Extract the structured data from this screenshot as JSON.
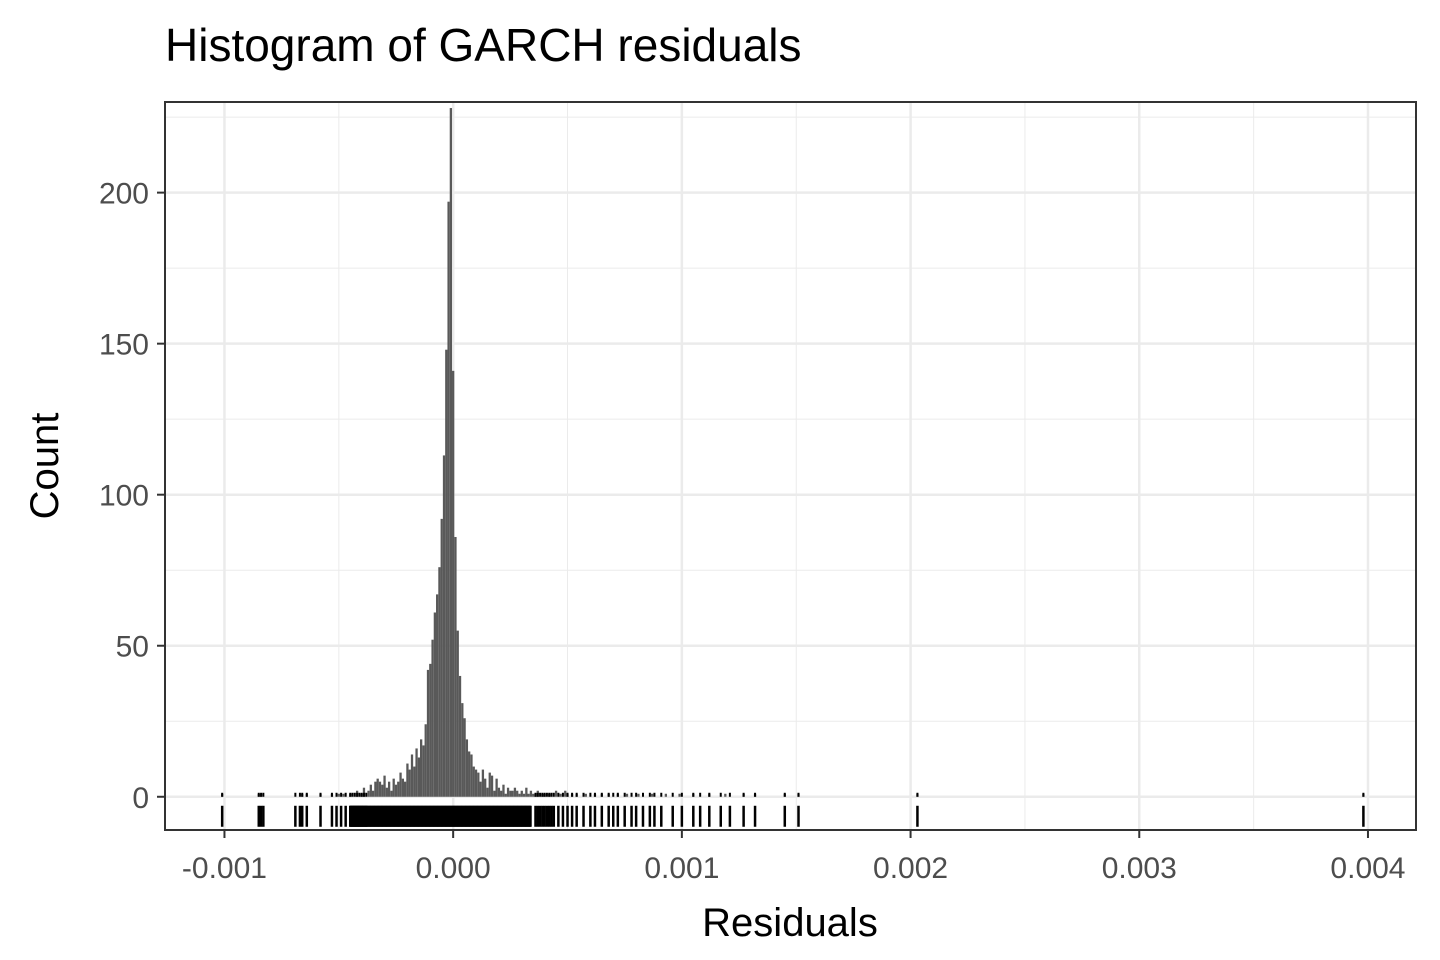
{
  "chart_data": {
    "type": "bar",
    "title": "Histogram of GARCH residuals",
    "xlabel": "Residuals",
    "ylabel": "Count",
    "xlim": [
      -0.00126,
      0.00421
    ],
    "ylim": [
      -11,
      230
    ],
    "grid": true,
    "x_ticks": [
      {
        "value": -0.001,
        "label": "-0.001"
      },
      {
        "value": 0.0,
        "label": "0.000"
      },
      {
        "value": 0.001,
        "label": "0.001"
      },
      {
        "value": 0.002,
        "label": "0.002"
      },
      {
        "value": 0.003,
        "label": "0.003"
      },
      {
        "value": 0.004,
        "label": "0.004"
      }
    ],
    "y_ticks": [
      {
        "value": 0,
        "label": "0"
      },
      {
        "value": 50,
        "label": "50"
      },
      {
        "value": 100,
        "label": "100"
      },
      {
        "value": 150,
        "label": "150"
      },
      {
        "value": 200,
        "label": "200"
      }
    ],
    "bin_width": 1e-05,
    "bins": [
      {
        "x": -0.00085,
        "count": 1
      },
      {
        "x": -0.00084,
        "count": 1
      },
      {
        "x": -0.00066,
        "count": 1
      },
      {
        "x": -0.00064,
        "count": 1
      },
      {
        "x": -0.00058,
        "count": 1
      },
      {
        "x": -0.00053,
        "count": 1
      },
      {
        "x": -0.0005,
        "count": 1
      },
      {
        "x": -0.00048,
        "count": 1
      },
      {
        "x": -0.00045,
        "count": 1
      },
      {
        "x": -0.00042,
        "count": 2
      },
      {
        "x": -0.0004,
        "count": 1
      },
      {
        "x": -0.00039,
        "count": 3
      },
      {
        "x": -0.00037,
        "count": 2
      },
      {
        "x": -0.00036,
        "count": 4
      },
      {
        "x": -0.00035,
        "count": 2
      },
      {
        "x": -0.00034,
        "count": 5
      },
      {
        "x": -0.00033,
        "count": 6
      },
      {
        "x": -0.00032,
        "count": 5
      },
      {
        "x": -0.00031,
        "count": 4
      },
      {
        "x": -0.0003,
        "count": 7
      },
      {
        "x": -0.00029,
        "count": 3
      },
      {
        "x": -0.00028,
        "count": 5
      },
      {
        "x": -0.00027,
        "count": 2
      },
      {
        "x": -0.00026,
        "count": 6
      },
      {
        "x": -0.00025,
        "count": 4
      },
      {
        "x": -0.00024,
        "count": 5
      },
      {
        "x": -0.00023,
        "count": 8
      },
      {
        "x": -0.00022,
        "count": 6
      },
      {
        "x": -0.00021,
        "count": 5
      },
      {
        "x": -0.0002,
        "count": 11
      },
      {
        "x": -0.00019,
        "count": 9
      },
      {
        "x": -0.00018,
        "count": 14
      },
      {
        "x": -0.00017,
        "count": 10
      },
      {
        "x": -0.00016,
        "count": 16
      },
      {
        "x": -0.00015,
        "count": 13
      },
      {
        "x": -0.00014,
        "count": 19
      },
      {
        "x": -0.00013,
        "count": 17
      },
      {
        "x": -0.00012,
        "count": 24
      },
      {
        "x": -0.00011,
        "count": 42
      },
      {
        "x": -0.0001,
        "count": 44
      },
      {
        "x": -9e-05,
        "count": 52
      },
      {
        "x": -8e-05,
        "count": 61
      },
      {
        "x": -7e-05,
        "count": 67
      },
      {
        "x": -6e-05,
        "count": 76
      },
      {
        "x": -5e-05,
        "count": 92
      },
      {
        "x": -4e-05,
        "count": 113
      },
      {
        "x": -3e-05,
        "count": 148
      },
      {
        "x": -2e-05,
        "count": 197
      },
      {
        "x": -1e-05,
        "count": 228
      },
      {
        "x": 0.0,
        "count": 141
      },
      {
        "x": 1e-05,
        "count": 86
      },
      {
        "x": 2e-05,
        "count": 55
      },
      {
        "x": 3e-05,
        "count": 40
      },
      {
        "x": 4e-05,
        "count": 31
      },
      {
        "x": 5e-05,
        "count": 26
      },
      {
        "x": 6e-05,
        "count": 19
      },
      {
        "x": 7e-05,
        "count": 15
      },
      {
        "x": 8e-05,
        "count": 14
      },
      {
        "x": 9e-05,
        "count": 10
      },
      {
        "x": 0.0001,
        "count": 9
      },
      {
        "x": 0.00011,
        "count": 8
      },
      {
        "x": 0.00012,
        "count": 5
      },
      {
        "x": 0.00013,
        "count": 9
      },
      {
        "x": 0.00014,
        "count": 6
      },
      {
        "x": 0.00015,
        "count": 3
      },
      {
        "x": 0.00016,
        "count": 8
      },
      {
        "x": 0.00017,
        "count": 7
      },
      {
        "x": 0.00018,
        "count": 2
      },
      {
        "x": 0.00019,
        "count": 6
      },
      {
        "x": 0.0002,
        "count": 3
      },
      {
        "x": 0.00021,
        "count": 2
      },
      {
        "x": 0.00022,
        "count": 4
      },
      {
        "x": 0.00023,
        "count": 1
      },
      {
        "x": 0.00024,
        "count": 3
      },
      {
        "x": 0.00025,
        "count": 2
      },
      {
        "x": 0.00026,
        "count": 2
      },
      {
        "x": 0.00027,
        "count": 3
      },
      {
        "x": 0.00028,
        "count": 2
      },
      {
        "x": 0.00029,
        "count": 1
      },
      {
        "x": 0.0003,
        "count": 2
      },
      {
        "x": 0.00031,
        "count": 1
      },
      {
        "x": 0.00032,
        "count": 3
      },
      {
        "x": 0.00033,
        "count": 1
      },
      {
        "x": 0.00034,
        "count": 2
      },
      {
        "x": 0.00035,
        "count": 1
      },
      {
        "x": 0.00036,
        "count": 1
      },
      {
        "x": 0.00037,
        "count": 2
      },
      {
        "x": 0.00039,
        "count": 1
      },
      {
        "x": 0.0004,
        "count": 1
      },
      {
        "x": 0.00042,
        "count": 1
      },
      {
        "x": 0.00045,
        "count": 2
      },
      {
        "x": 0.00047,
        "count": 1
      },
      {
        "x": 0.00049,
        "count": 2
      },
      {
        "x": 0.0005,
        "count": 1
      },
      {
        "x": 0.00052,
        "count": 1
      },
      {
        "x": 0.00054,
        "count": 1
      },
      {
        "x": 0.00058,
        "count": 1
      },
      {
        "x": 0.00062,
        "count": 1
      },
      {
        "x": 0.00065,
        "count": 1
      },
      {
        "x": 0.00068,
        "count": 1
      },
      {
        "x": 0.00072,
        "count": 1
      },
      {
        "x": 0.00076,
        "count": 1
      },
      {
        "x": 0.00081,
        "count": 1
      },
      {
        "x": 0.00087,
        "count": 1
      },
      {
        "x": 0.00093,
        "count": 1
      },
      {
        "x": 0.00099,
        "count": 1
      },
      {
        "x": 0.00105,
        "count": 1
      },
      {
        "x": 0.00112,
        "count": 1
      },
      {
        "x": 0.00119,
        "count": 1
      },
      {
        "x": 0.00127,
        "count": 1
      },
      {
        "x": 0.00132,
        "count": 1
      },
      {
        "x": 0.00145,
        "count": 1
      },
      {
        "x": 0.00151,
        "count": 1
      },
      {
        "x": 0.00203,
        "count": 1
      },
      {
        "x": -0.00101,
        "count": 1
      },
      {
        "x": 0.00398,
        "count": 1
      }
    ],
    "rug": [
      -0.00101,
      -0.00085,
      -0.00084,
      -0.00083,
      -0.00069,
      -0.00067,
      -0.00066,
      -0.00064,
      -0.00058,
      -0.00053,
      -0.00051,
      -0.00049,
      -0.00047,
      -0.00045,
      -0.00044,
      -0.00043,
      -0.00042,
      -0.00041,
      -0.0004,
      -0.00039,
      -0.00038,
      0.00036,
      0.00037,
      0.00038,
      0.00039,
      0.0004,
      0.00041,
      0.00042,
      0.00043,
      0.00044,
      0.00046,
      0.00048,
      0.0005,
      0.00052,
      0.00054,
      0.00057,
      0.0006,
      0.00062,
      0.00065,
      0.00068,
      0.0007,
      0.00072,
      0.00075,
      0.00078,
      0.0008,
      0.00083,
      0.00086,
      0.00088,
      0.00091,
      0.00096,
      0.001,
      0.00105,
      0.00108,
      0.00112,
      0.00117,
      0.00121,
      0.00127,
      0.00132,
      0.00145,
      0.00151,
      0.00203,
      0.00398
    ],
    "rug_dense_range": [
      -0.00045,
      0.00034
    ],
    "fill_color": "#595959",
    "rug_color": "#000000",
    "grid_color": "#ebebeb",
    "border_color": "#333333"
  }
}
